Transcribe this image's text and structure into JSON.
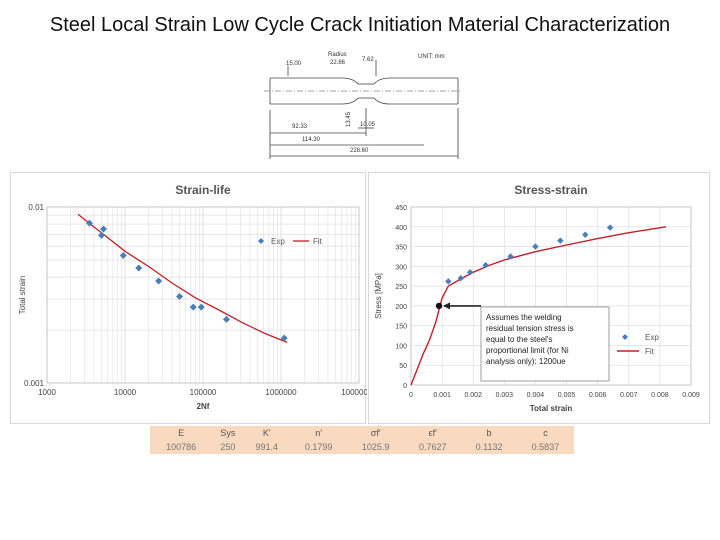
{
  "page": {
    "title": "Steel Local Strain Low Cycle Crack Initiation Material Characterization"
  },
  "specimen": {
    "radius_label": "Radius",
    "radius_value": "22.86",
    "unit_label": "UNIT: mm",
    "dims": [
      "7.62",
      "15.00",
      "13.45",
      "92.33",
      "10.05",
      "114.30",
      "228.60"
    ]
  },
  "colors": {
    "marker": "#4a7ebb",
    "fit": "#c0202a",
    "grid": "#d9d9d9",
    "table_fill": "#f9d9c0",
    "annotation_arrow": "#222222"
  },
  "chart_data": [
    {
      "type": "scatter",
      "title": "Strain-life",
      "xlabel": "2Nf",
      "ylabel": "Total strain",
      "x_scale": "log",
      "y_scale": "log",
      "xlim": [
        1000,
        10000000
      ],
      "ylim": [
        0.001,
        0.01
      ],
      "x_ticks": [
        "1000",
        "10000",
        "100000",
        "1000000",
        "10000000"
      ],
      "y_ticks": [
        "0.001",
        "0.01"
      ],
      "grid": true,
      "legend_position": "top-right",
      "series": [
        {
          "name": "Exp",
          "style": "markers",
          "points": [
            [
              3500,
              0.0081
            ],
            [
              5000,
              0.0069
            ],
            [
              5300,
              0.0075
            ],
            [
              9500,
              0.0053
            ],
            [
              15000,
              0.0045
            ],
            [
              27000,
              0.0038
            ],
            [
              50000,
              0.0031
            ],
            [
              75000,
              0.0027
            ],
            [
              95000,
              0.0027
            ],
            [
              200000,
              0.0023
            ],
            [
              1100000,
              0.0018
            ]
          ]
        },
        {
          "name": "Fit",
          "style": "line",
          "points": [
            [
              2500,
              0.0091
            ],
            [
              4000,
              0.0077
            ],
            [
              6000,
              0.0067
            ],
            [
              10000,
              0.0056
            ],
            [
              20000,
              0.0046
            ],
            [
              40000,
              0.0037
            ],
            [
              80000,
              0.00305
            ],
            [
              160000,
              0.0026
            ],
            [
              320000,
              0.0022
            ],
            [
              640000,
              0.0019
            ],
            [
              1200000,
              0.0017
            ]
          ]
        }
      ]
    },
    {
      "type": "scatter",
      "title": "Stress-strain",
      "xlabel": "Total strain",
      "ylabel": "Stress [MPa]",
      "xlim": [
        0,
        0.009
      ],
      "ylim": [
        0,
        450
      ],
      "x_ticks": [
        "0",
        "0.001",
        "0.002",
        "0.003",
        "0.004",
        "0.005",
        "0.006",
        "0.007",
        "0.008",
        "0.009"
      ],
      "y_ticks": [
        "0",
        "50",
        "100",
        "150",
        "200",
        "250",
        "300",
        "350",
        "400",
        "450"
      ],
      "grid": true,
      "legend_position": "right",
      "series": [
        {
          "name": "Exp",
          "style": "markers",
          "points": [
            [
              0.0012,
              262
            ],
            [
              0.0016,
              270
            ],
            [
              0.0019,
              285
            ],
            [
              0.0024,
              303
            ],
            [
              0.0032,
              325
            ],
            [
              0.004,
              350
            ],
            [
              0.0048,
              365
            ],
            [
              0.0056,
              380
            ],
            [
              0.0064,
              398
            ]
          ]
        },
        {
          "name": "Fit",
          "style": "line",
          "points": [
            [
              0,
              0
            ],
            [
              0.0002,
              40
            ],
            [
              0.0004,
              80
            ],
            [
              0.0006,
              115
            ],
            [
              0.0008,
              160
            ],
            [
              0.001,
              220
            ],
            [
              0.0012,
              250
            ],
            [
              0.0016,
              268
            ],
            [
              0.002,
              285
            ],
            [
              0.0025,
              302
            ],
            [
              0.003,
              316
            ],
            [
              0.004,
              337
            ],
            [
              0.005,
              354
            ],
            [
              0.006,
              370
            ],
            [
              0.007,
              385
            ],
            [
              0.0082,
              400
            ]
          ]
        }
      ],
      "annotation": {
        "text": "Assumes the welding residual tension stress is equal to the steel's proportional limit (for Ni analysis only): 1200ue",
        "lines": [
          "Assumes the welding",
          "residual tension stress is",
          "equal to the steel's",
          "proportional limit (for Ni",
          "analysis only): 1200ue"
        ],
        "point": [
          0.0009,
          200
        ]
      }
    }
  ],
  "properties_table": {
    "headers": [
      "E",
      "Sys",
      "K'",
      "n'",
      "σf'",
      "εf'",
      "b",
      "c"
    ],
    "values": [
      "100786",
      "250",
      "991.4",
      "0.1799",
      "1025.9",
      "0.7627",
      "0.1132",
      "0.5837"
    ]
  }
}
